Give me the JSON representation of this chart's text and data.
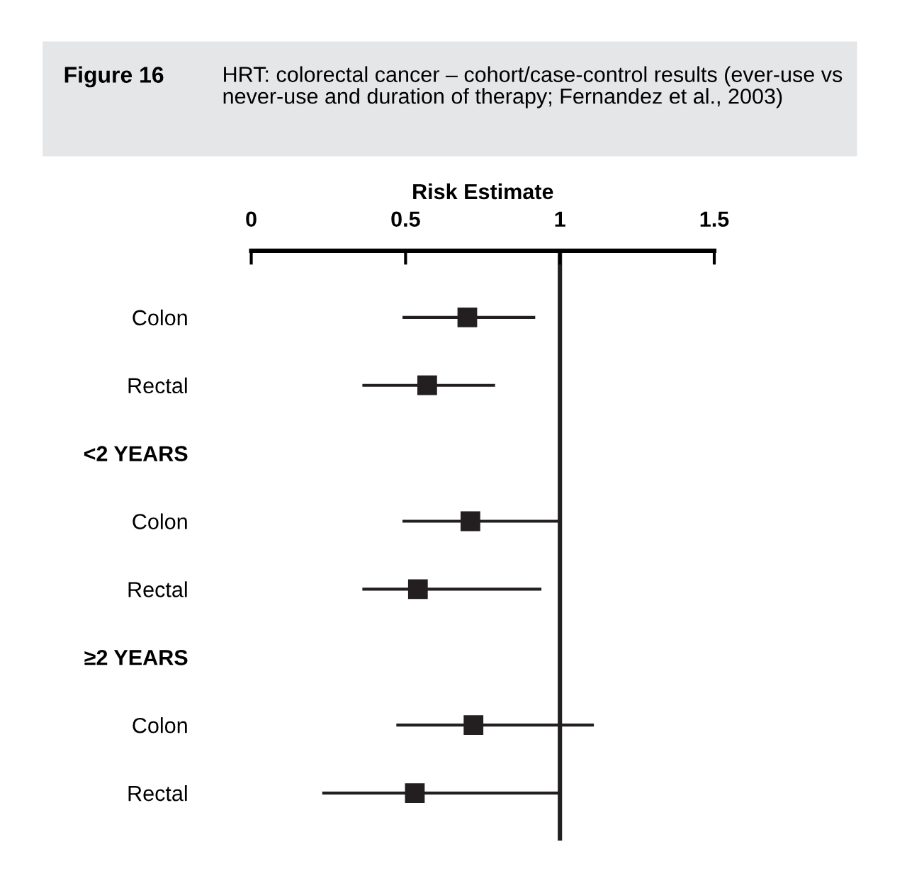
{
  "chart_data": {
    "type": "scatter",
    "orientation": "horizontal",
    "title": "Figure 16",
    "subtitle": "HRT: colorectal cancer – cohort/case-control results (ever-use vs never-use and duration of therapy; Fernandez et al., 2003)",
    "xlabel": "Risk Estimate",
    "categories": [
      "Colon",
      "Rectal",
      "<2 YEARS",
      "Colon",
      "Rectal",
      "≥2 YEARS",
      "Colon",
      "Rectal"
    ],
    "values": [
      0.7,
      0.57,
      null,
      0.71,
      0.54,
      null,
      0.72,
      0.53
    ],
    "errors": [
      [
        0.49,
        0.92
      ],
      [
        0.36,
        0.79
      ],
      null,
      [
        0.49,
        1.0
      ],
      [
        0.36,
        0.94
      ],
      null,
      [
        0.47,
        1.11
      ],
      [
        0.23,
        1.0
      ]
    ],
    "color": "#231f20",
    "marker": "square",
    "xlim": [
      0,
      1.5
    ],
    "xticks": [
      0,
      0.5,
      1,
      1.5
    ],
    "ref_lines": [
      {
        "axis": "x",
        "value": 1,
        "color": "#231f20"
      }
    ],
    "grid": false,
    "legend": false
  }
}
